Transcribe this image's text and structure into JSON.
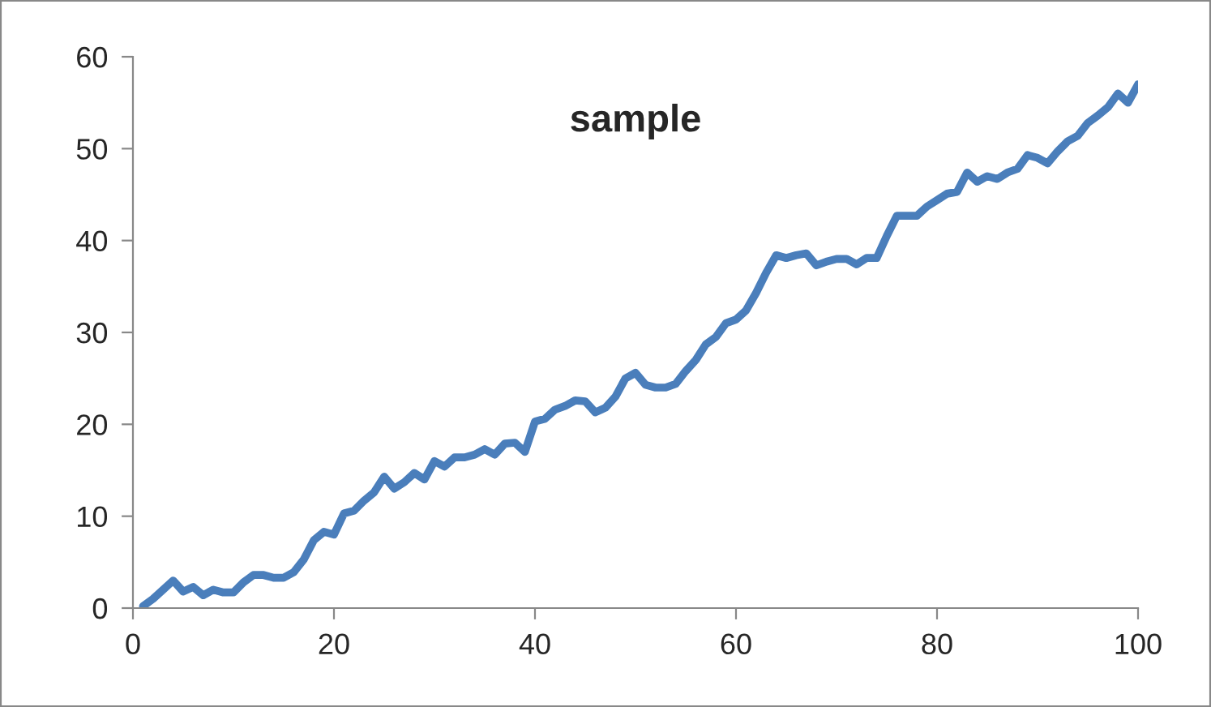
{
  "chart_data": {
    "type": "line",
    "title": "sample",
    "x": [
      1,
      2,
      3,
      4,
      5,
      6,
      7,
      8,
      9,
      10,
      11,
      12,
      13,
      14,
      15,
      16,
      17,
      18,
      19,
      20,
      21,
      22,
      23,
      24,
      25,
      26,
      27,
      28,
      29,
      30,
      31,
      32,
      33,
      34,
      35,
      36,
      37,
      38,
      39,
      40,
      41,
      42,
      43,
      44,
      45,
      46,
      47,
      48,
      49,
      50,
      51,
      52,
      53,
      54,
      55,
      56,
      57,
      58,
      59,
      60,
      61,
      62,
      63,
      64,
      65,
      66,
      67,
      68,
      69,
      70,
      71,
      72,
      73,
      74,
      75,
      76,
      77,
      78,
      79,
      80,
      81,
      82,
      83,
      84,
      85,
      86,
      87,
      88,
      89,
      90,
      91,
      92,
      93,
      94,
      95,
      96,
      97,
      98,
      99,
      100
    ],
    "series": [
      {
        "color": "#4a7ebb",
        "values": [
          0.2,
          1,
          2,
          3,
          1.8,
          2.3,
          1.4,
          2,
          1.7,
          1.7,
          2.8,
          3.6,
          3.6,
          3.3,
          3.3,
          3.9,
          5.3,
          7.4,
          8.3,
          8,
          10.3,
          10.6,
          11.7,
          12.6,
          14.3,
          13,
          13.7,
          14.7,
          14,
          16,
          15.4,
          16.4,
          16.4,
          16.7,
          17.3,
          16.7,
          17.9,
          18,
          17,
          20.3,
          20.6,
          21.6,
          22,
          22.6,
          22.5,
          21.3,
          21.8,
          23,
          25,
          25.6,
          24.3,
          24,
          24,
          24.4,
          25.8,
          27,
          28.7,
          29.5,
          31,
          31.4,
          32.4,
          34.3,
          36.5,
          38.4,
          38.1,
          38.4,
          38.6,
          37.3,
          37.7,
          38,
          38,
          37.4,
          38.1,
          38.1,
          40.5,
          42.7,
          42.7,
          42.7,
          43.7,
          44.4,
          45.1,
          45.3,
          47.4,
          46.4,
          47,
          46.7,
          47.4,
          47.8,
          49.3,
          49,
          48.4,
          49.7,
          50.8,
          51.4,
          52.8,
          53.6,
          54.5,
          56,
          55,
          57
        ]
      }
    ],
    "xlim": [
      0,
      100
    ],
    "ylim": [
      0,
      60
    ],
    "xticks": [
      0,
      20,
      40,
      60,
      80,
      100
    ],
    "yticks": [
      0,
      10,
      20,
      30,
      40,
      50,
      60
    ],
    "grid": false,
    "marker": "none",
    "line_style": "solid"
  }
}
